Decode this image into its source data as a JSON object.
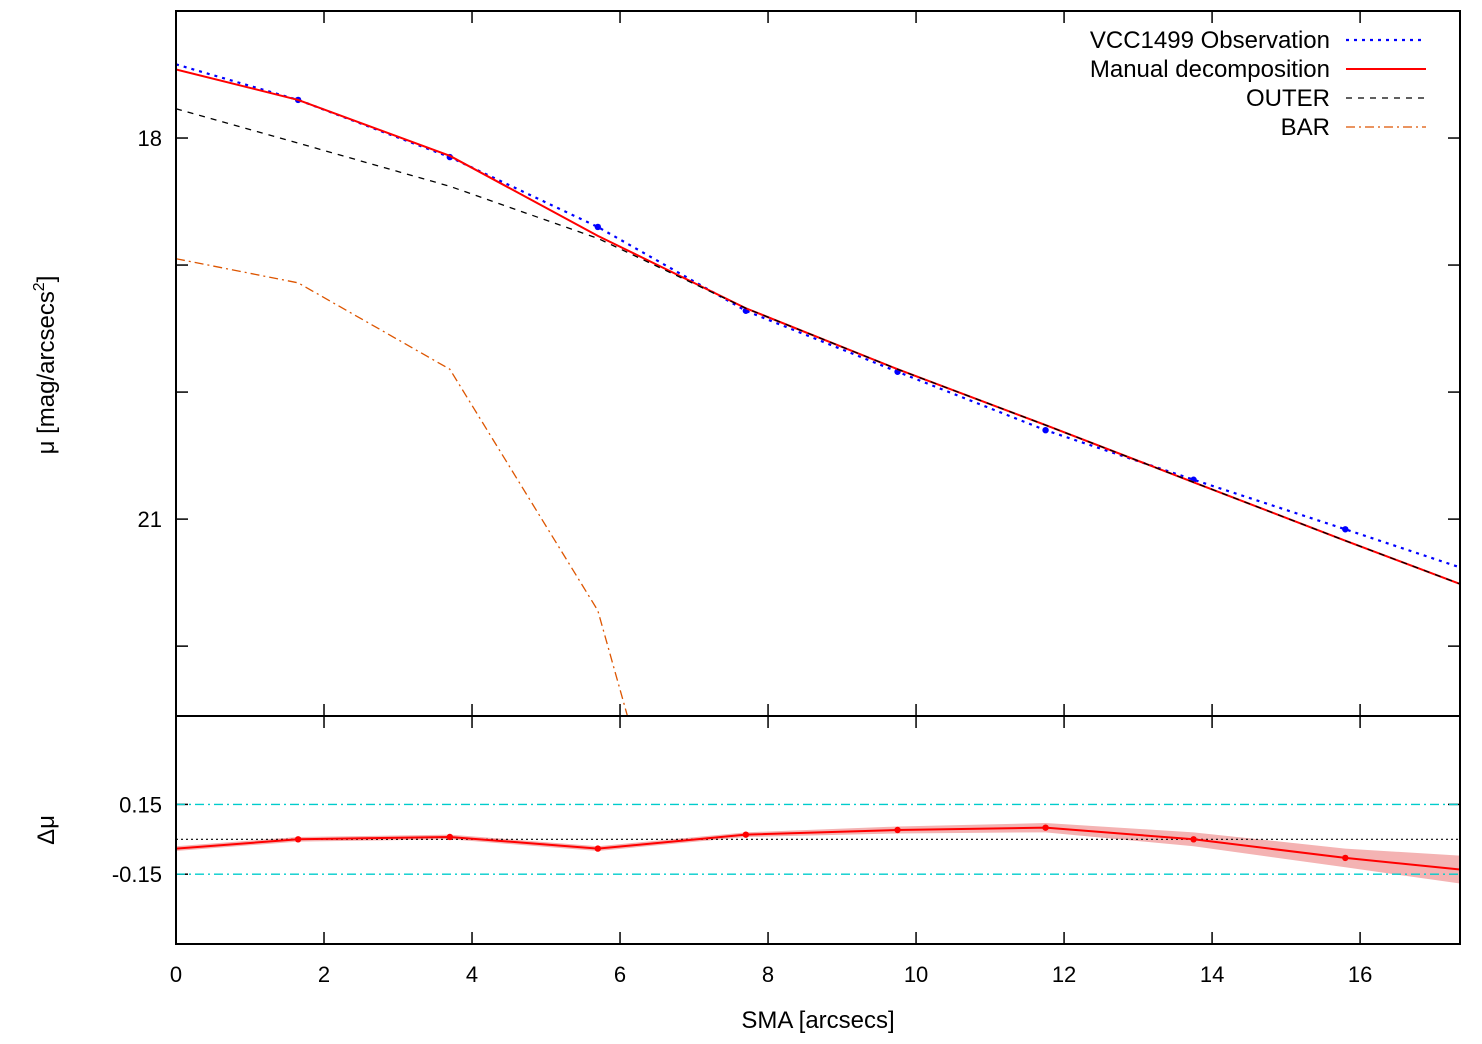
{
  "chart_data": [
    {
      "panel": "main",
      "type": "line",
      "title": "",
      "xlabel": "",
      "ylabel": "μ [mag/arcsecs²]",
      "ylabel_parts": {
        "text": "μ [mag/arcsecs",
        "sup": "2",
        "close": "]"
      },
      "xlim": [
        0,
        17.35
      ],
      "ylim": [
        17.0,
        22.55
      ],
      "y_inverted": true,
      "yticks": [
        17.0,
        18.0,
        19.0,
        20.0,
        21.0,
        22.0
      ],
      "ytick_labels": [
        {
          "value": 18,
          "label": "18"
        },
        {
          "value": 21,
          "label": "21"
        }
      ],
      "legend_position": "top-right",
      "series": [
        {
          "name": "VCC1499 Observation",
          "style": "dotted",
          "color": "#0000ff",
          "markers": true,
          "x": [
            0,
            1.65,
            3.7,
            5.7,
            7.7,
            9.75,
            11.75,
            13.75,
            15.8,
            17.35
          ],
          "y": [
            17.42,
            17.7,
            18.15,
            18.7,
            19.36,
            19.84,
            20.3,
            20.69,
            21.08,
            21.38
          ]
        },
        {
          "name": "Manual decomposition",
          "style": "solid",
          "color": "#ff0000",
          "markers": false,
          "x": [
            0,
            1.65,
            3.7,
            5.7,
            7.7,
            9.75,
            11.75,
            13.75,
            15.8,
            17.35
          ],
          "y": [
            17.46,
            17.7,
            18.14,
            18.77,
            19.34,
            19.82,
            20.26,
            20.71,
            21.17,
            21.51
          ]
        },
        {
          "name": "OUTER",
          "style": "dashed",
          "color": "#000000",
          "markers": false,
          "x": [
            0,
            1.65,
            3.7,
            5.7,
            7.7,
            9.75,
            11.75,
            13.75,
            15.8,
            17.35
          ],
          "y": [
            17.77,
            18.04,
            18.38,
            18.79,
            19.34,
            19.82,
            20.26,
            20.71,
            21.17,
            21.51
          ]
        },
        {
          "name": "BAR",
          "style": "dash-dot",
          "color": "#dd5500",
          "markers": false,
          "x": [
            0,
            1.65,
            3.7,
            5.7,
            6.1
          ],
          "y": [
            18.95,
            19.14,
            19.82,
            21.72,
            22.55
          ]
        }
      ]
    },
    {
      "panel": "residual",
      "type": "line",
      "xlabel": "SMA [arcsecs]",
      "ylabel": "Δμ",
      "xlim": [
        0,
        17.35
      ],
      "ylim": [
        -0.45,
        0.53
      ],
      "y_inverted": true,
      "xticks": [
        0,
        2,
        4,
        6,
        8,
        10,
        12,
        14,
        16
      ],
      "xtick_labels": [
        "0",
        "2",
        "4",
        "6",
        "8",
        "10",
        "12",
        "14",
        "16"
      ],
      "ytick_labels": [
        {
          "value": 0.15,
          "label": "0.15"
        },
        {
          "value": -0.15,
          "label": "-0.15"
        }
      ],
      "reference_lines": [
        {
          "y": 0.15,
          "style": "dash-dot",
          "color": "#00cccc"
        },
        {
          "y": -0.15,
          "style": "dash-dot",
          "color": "#00cccc"
        },
        {
          "y": 0.0,
          "style": "dotted",
          "color": "#000000"
        }
      ],
      "series": [
        {
          "style": "solid",
          "color": "#ff0000",
          "markers": true,
          "x": [
            0,
            1.65,
            3.7,
            5.7,
            7.7,
            9.75,
            11.75,
            13.75,
            15.8,
            17.35
          ],
          "y": [
            -0.04,
            0.0,
            0.01,
            -0.04,
            0.02,
            0.04,
            0.05,
            0.0,
            -0.08,
            -0.13
          ],
          "band_halfwidth": [
            0.01,
            0.01,
            0.01,
            0.01,
            0.01,
            0.015,
            0.02,
            0.03,
            0.04,
            0.06
          ],
          "band_color": "#f4b3b3"
        }
      ]
    }
  ]
}
